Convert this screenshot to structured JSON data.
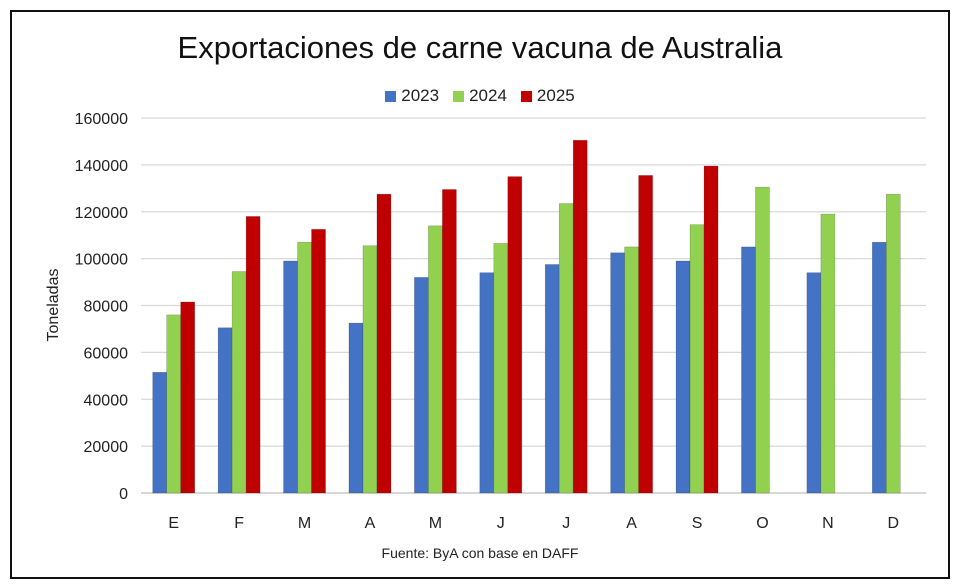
{
  "chart_data": {
    "type": "bar",
    "title": "Exportaciones de carne vacuna de Australia",
    "xlabel": "",
    "ylabel": "Toneladas",
    "source": "Fuente: ByA con base en DAFF",
    "categories": [
      "E",
      "F",
      "M",
      "A",
      "M",
      "J",
      "J",
      "A",
      "S",
      "O",
      "N",
      "D"
    ],
    "ylim": [
      0,
      160000
    ],
    "yticks": [
      "0",
      "20000",
      "40000",
      "60000",
      "80000",
      "100000",
      "120000",
      "140000",
      "160000"
    ],
    "grid": true,
    "legend_position": "top",
    "series": [
      {
        "name": "2023",
        "color": "#4472c4",
        "values": [
          51500,
          70500,
          99000,
          72500,
          92000,
          94000,
          97500,
          102500,
          99000,
          105000,
          94000,
          107000
        ]
      },
      {
        "name": "2024",
        "color": "#92d050",
        "values": [
          76000,
          94500,
          107000,
          105500,
          114000,
          106500,
          123500,
          105000,
          114500,
          130500,
          119000,
          127500
        ]
      },
      {
        "name": "2025",
        "color": "#c00000",
        "values": [
          81500,
          118000,
          112500,
          127500,
          129500,
          135000,
          150500,
          135500,
          139500,
          null,
          null,
          null
        ]
      }
    ]
  }
}
